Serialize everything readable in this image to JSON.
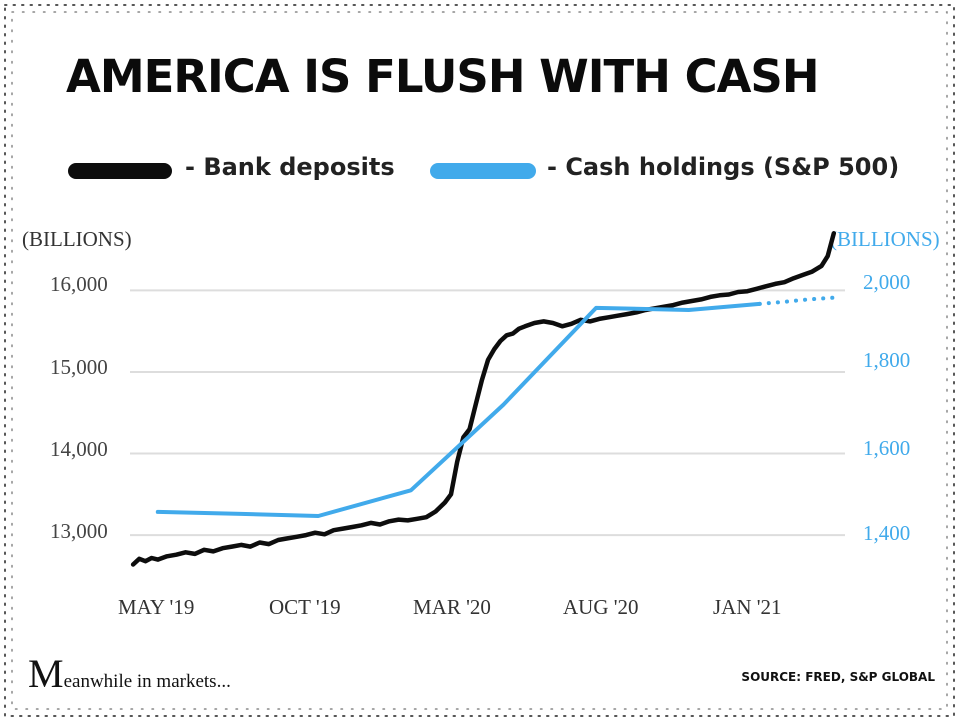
{
  "colors": {
    "bank": "#0d0d0d",
    "cash": "#41aaeb",
    "grid": "#dddddd",
    "dots": "#555555"
  },
  "header": {
    "title": "AMERICA IS FLUSH WITH CASH",
    "legend_bank": "- Bank deposits",
    "legend_cash": "- Cash holdings (S&P 500)"
  },
  "footer": {
    "brand_initial": "M",
    "brand_rest": "eanwhile in markets...",
    "source": "SOURCE:  FRED, S&P GLOBAL"
  },
  "chart_data": {
    "type": "line",
    "title": "AMERICA IS FLUSH WITH CASH",
    "left_axis": {
      "label": "(BILLIONS)",
      "ticks": [
        "16,000",
        "15,000",
        "14,000",
        "13,000"
      ],
      "tick_values": [
        16000,
        15000,
        14000,
        13000
      ],
      "ylim": [
        12450,
        16250
      ]
    },
    "right_axis": {
      "label": "(BILLIONS)",
      "ticks": [
        "2,000",
        "1,800",
        "1,600",
        "1,400"
      ],
      "tick_values": [
        2000,
        1800,
        1600,
        1400
      ],
      "ylim": [
        1270,
        2030
      ]
    },
    "x_ticks": [
      "MAY '19",
      "OCT '19",
      "MAR '20",
      "AUG '20",
      "JAN '21"
    ],
    "x_tick_positions": [
      0,
      5,
      10,
      15,
      20
    ],
    "xlim": [
      -0.6,
      22.4
    ],
    "grid": true,
    "series": [
      {
        "name": "Bank deposits",
        "axis": "left",
        "x": [
          -0.5,
          -0.3,
          -0.1,
          0.1,
          0.3,
          0.6,
          0.9,
          1.2,
          1.5,
          1.8,
          2.1,
          2.4,
          2.7,
          3.0,
          3.3,
          3.6,
          3.9,
          4.2,
          4.5,
          4.8,
          5.1,
          5.4,
          5.7,
          6.0,
          6.3,
          6.6,
          6.9,
          7.2,
          7.5,
          7.8,
          8.1,
          8.4,
          8.7,
          9.0,
          9.3,
          9.6,
          9.8,
          10.0,
          10.2,
          10.4,
          10.6,
          10.8,
          11.0,
          11.2,
          11.4,
          11.6,
          11.8,
          12.0,
          12.2,
          12.5,
          12.8,
          13.1,
          13.4,
          13.7,
          14.0,
          14.3,
          14.6,
          14.9,
          15.2,
          15.5,
          15.8,
          16.1,
          16.4,
          16.7,
          17.0,
          17.3,
          17.6,
          17.9,
          18.2,
          18.5,
          18.8,
          19.1,
          19.4,
          19.7,
          20.0,
          20.3,
          20.6,
          20.9,
          21.2,
          21.5,
          21.8,
          22.0,
          22.2
        ],
        "values": [
          12640,
          12710,
          12680,
          12720,
          12700,
          12740,
          12760,
          12790,
          12770,
          12820,
          12800,
          12840,
          12860,
          12880,
          12860,
          12910,
          12890,
          12940,
          12960,
          12980,
          13000,
          13030,
          13010,
          13060,
          13080,
          13100,
          13120,
          13150,
          13130,
          13170,
          13190,
          13180,
          13200,
          13220,
          13290,
          13400,
          13500,
          13900,
          14200,
          14300,
          14600,
          14900,
          15150,
          15280,
          15380,
          15450,
          15470,
          15530,
          15560,
          15600,
          15620,
          15600,
          15560,
          15590,
          15640,
          15620,
          15650,
          15670,
          15690,
          15710,
          15730,
          15760,
          15780,
          15800,
          15820,
          15850,
          15870,
          15890,
          15920,
          15940,
          15950,
          15980,
          15990,
          16020,
          16050,
          16080,
          16100,
          16150,
          16190,
          16230,
          16300,
          16420,
          16700
        ]
      },
      {
        "name": "Cash holdings (S&P 500)",
        "axis": "right",
        "x": [
          0.3,
          3.0,
          5.5,
          8.5,
          11.5,
          14.5,
          17.5,
          19.8
        ],
        "values": [
          1437,
          1432,
          1427,
          1490,
          1700,
          1937,
          1932,
          1947
        ],
        "projection": {
          "x": [
            19.8,
            20.6,
            21.4,
            22.2
          ],
          "values": [
            1947,
            1952,
            1958,
            1962
          ]
        }
      }
    ]
  }
}
